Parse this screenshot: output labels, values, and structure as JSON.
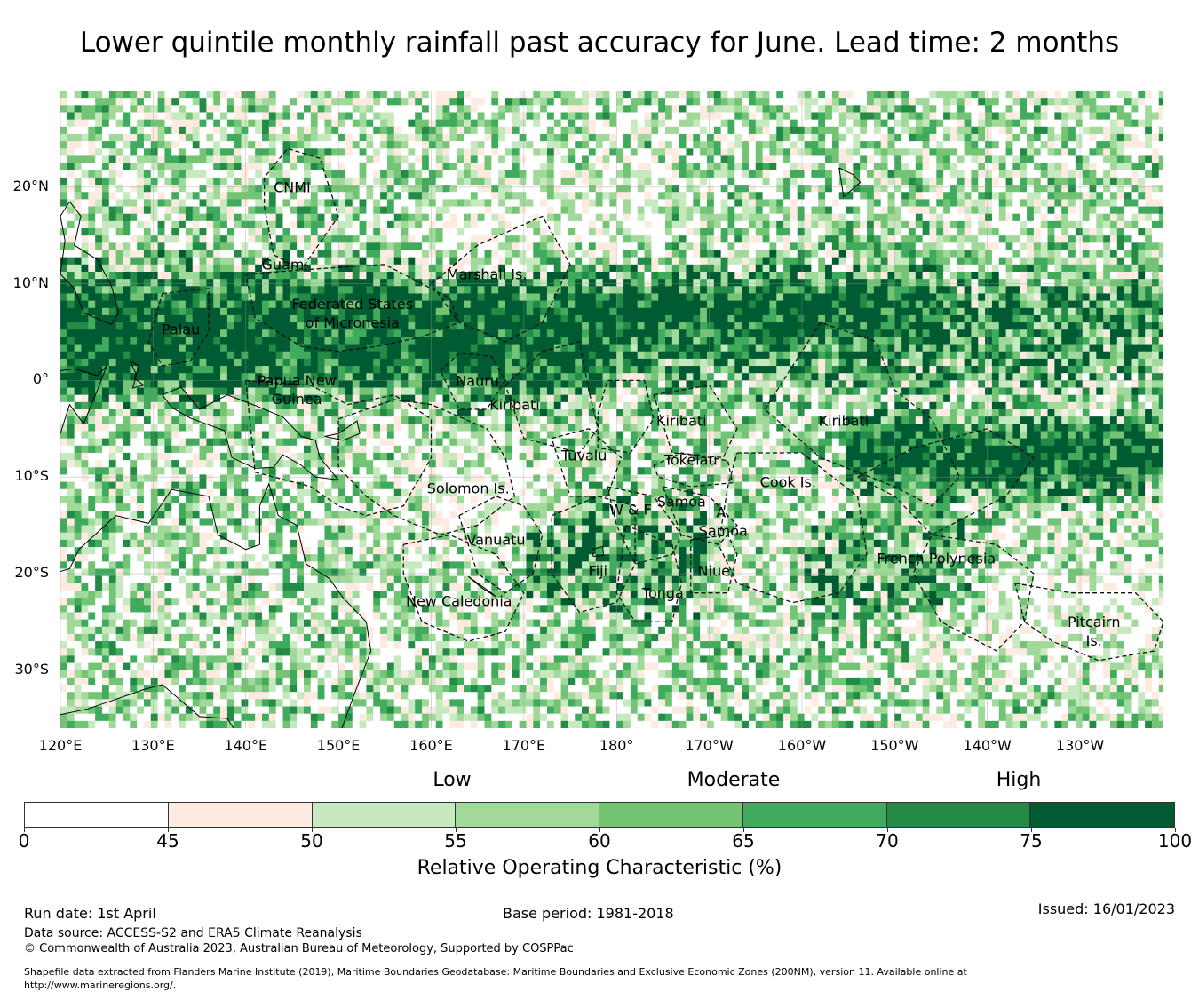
{
  "title": "Lower quintile monthly rainfall past accuracy for June. Lead time: 2 months",
  "map": {
    "lon_range": [
      120,
      239
    ],
    "lat_range": [
      -36,
      30
    ],
    "lat_ticks": [
      {
        "lat": 20,
        "label": "20°N"
      },
      {
        "lat": 10,
        "label": "10°N"
      },
      {
        "lat": 0,
        "label": "0°"
      },
      {
        "lat": -10,
        "label": "10°S"
      },
      {
        "lat": -20,
        "label": "20°S"
      },
      {
        "lat": -30,
        "label": "30°S"
      }
    ],
    "lon_ticks": [
      {
        "lon": 120,
        "label": "120°E"
      },
      {
        "lon": 130,
        "label": "130°E"
      },
      {
        "lon": 140,
        "label": "140°E"
      },
      {
        "lon": 150,
        "label": "150°E"
      },
      {
        "lon": 160,
        "label": "160°E"
      },
      {
        "lon": 170,
        "label": "170°E"
      },
      {
        "lon": 180,
        "label": "180°"
      },
      {
        "lon": 190,
        "label": "170°W"
      },
      {
        "lon": 200,
        "label": "160°W"
      },
      {
        "lon": 210,
        "label": "150°W"
      },
      {
        "lon": 220,
        "label": "140°W"
      },
      {
        "lon": 230,
        "label": "130°W"
      }
    ],
    "regions": [
      {
        "id": "cnmi",
        "label": "CNMI",
        "lon": 145.0,
        "lat": 20.0
      },
      {
        "id": "guam",
        "label": "Guam",
        "lon": 144.0,
        "lat": 12.0
      },
      {
        "id": "marshall",
        "label": "Marshall Is.",
        "lon": 166.0,
        "lat": 11.0
      },
      {
        "id": "fsm",
        "label": "Federated States\nof Micronesia",
        "lon": 151.5,
        "lat": 6.9
      },
      {
        "id": "palau",
        "label": "Palau",
        "lon": 133.0,
        "lat": 5.3
      },
      {
        "id": "png",
        "label": "Papua New\nGuinea",
        "lon": 145.5,
        "lat": -1.0
      },
      {
        "id": "nauru",
        "label": "Nauru",
        "lon": 165.0,
        "lat": -0.1
      },
      {
        "id": "kiribati-w",
        "label": "Kiribati",
        "lon": 169.0,
        "lat": -2.5
      },
      {
        "id": "kiribati-c",
        "label": "Kiribati",
        "lon": 187.0,
        "lat": -4.2
      },
      {
        "id": "kiribati-e",
        "label": "Kiribati",
        "lon": 204.5,
        "lat": -4.2
      },
      {
        "id": "tuvalu",
        "label": "Tuvalu",
        "lon": 176.5,
        "lat": -7.8
      },
      {
        "id": "tokelau",
        "label": "Tokelau",
        "lon": 188.0,
        "lat": -8.2
      },
      {
        "id": "cook",
        "label": "Cook Is.",
        "lon": 198.5,
        "lat": -10.5
      },
      {
        "id": "solomon",
        "label": "Solomon Is.",
        "lon": 164.0,
        "lat": -11.2
      },
      {
        "id": "wf",
        "label": "W & F",
        "lon": 181.5,
        "lat": -13.4
      },
      {
        "id": "samoa",
        "label": "Samoa",
        "lon": 187.0,
        "lat": -12.6
      },
      {
        "id": "asamoa-a",
        "label": "A.",
        "lon": 191.5,
        "lat": -13.7
      },
      {
        "id": "asamoa",
        "label": "Samoa",
        "lon": 191.5,
        "lat": -15.6
      },
      {
        "id": "vanuatu",
        "label": "Vanuatu",
        "lon": 167.0,
        "lat": -16.5
      },
      {
        "id": "fiji",
        "label": "Fiji",
        "lon": 178.0,
        "lat": -19.7
      },
      {
        "id": "niue",
        "label": "Niue",
        "lon": 190.5,
        "lat": -19.7
      },
      {
        "id": "french-poly",
        "label": "French Polynesia",
        "lon": 214.5,
        "lat": -18.4
      },
      {
        "id": "tonga",
        "label": "Tonga",
        "lon": 185.0,
        "lat": -22.0
      },
      {
        "id": "new-caledonia",
        "label": "New Caledonia",
        "lon": 163.0,
        "lat": -22.9
      },
      {
        "id": "pitcairn",
        "label": "Pitcairn\nIs.",
        "lon": 231.5,
        "lat": -26.0
      }
    ]
  },
  "legend": {
    "categories": [
      {
        "label": "Low",
        "value": 50
      },
      {
        "label": "Moderate",
        "value": 65
      },
      {
        "label": "High",
        "value": 80
      }
    ],
    "title": "Relative Operating Characteristic (%)",
    "bins": [
      {
        "from": 0,
        "to": 45,
        "color": "#ffffff"
      },
      {
        "from": 45,
        "to": 50,
        "color": "#fdebe1"
      },
      {
        "from": 50,
        "to": 55,
        "color": "#c7e9c0"
      },
      {
        "from": 55,
        "to": 60,
        "color": "#a1d99b"
      },
      {
        "from": 60,
        "to": 65,
        "color": "#74c476"
      },
      {
        "from": 65,
        "to": 70,
        "color": "#41ab5d"
      },
      {
        "from": 70,
        "to": 75,
        "color": "#238b45"
      },
      {
        "from": 75,
        "to": 100,
        "color": "#005a32"
      }
    ],
    "ticks": [
      "0",
      "45",
      "50",
      "55",
      "60",
      "65",
      "70",
      "75",
      "100"
    ]
  },
  "footer": {
    "run_date": "Run date: 1st April",
    "base_period": "Base period: 1981-2018",
    "issued": "Issued: 16/01/2023",
    "data_source": "Data source: ACCESS-S2 and ERA5 Climate Reanalysis",
    "copyright": "© Commonwealth of Australia 2023, Australian Bureau of Meteorology, Supported by COSPPac",
    "shapefile_1": "Shapefile data extracted from Flanders Marine Institute (2019), Maritime Boundaries Geodatabase: Maritime Boundaries and Exclusive Economic Zones (200NM), version 11. Available online at",
    "shapefile_2": "http://www.marineregions.org/."
  }
}
